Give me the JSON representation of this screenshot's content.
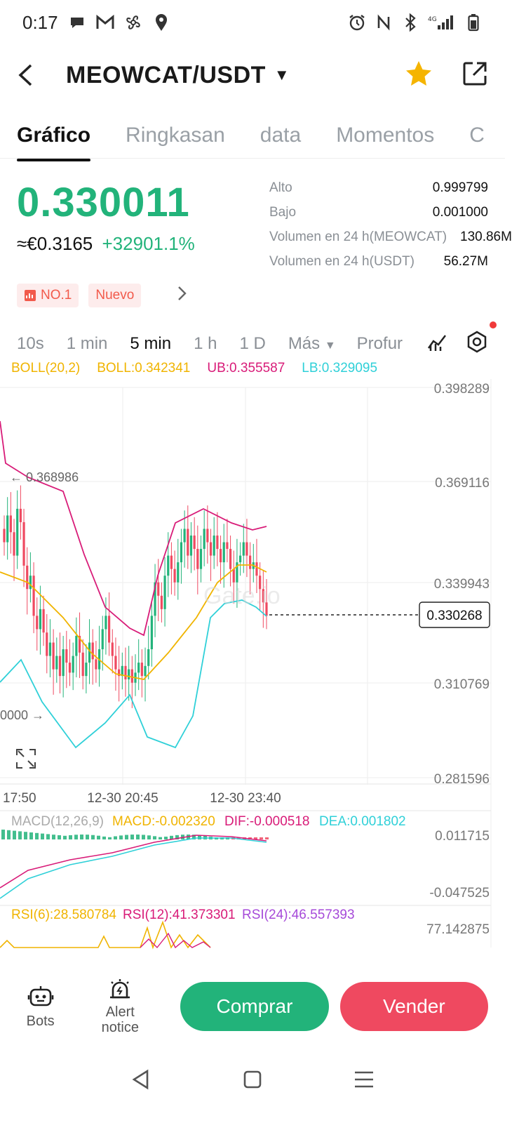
{
  "status_bar": {
    "time": "0:17",
    "network": "4G"
  },
  "header": {
    "pair": "MEOWCAT/USDT"
  },
  "tabs": [
    {
      "label": "Gráfico",
      "active": true
    },
    {
      "label": "Ringkasan"
    },
    {
      "label": "data"
    },
    {
      "label": "Momentos"
    },
    {
      "label": "C"
    }
  ],
  "ticker": {
    "last_price": "0.330011",
    "fiat_price": "≈€0.3165",
    "change": "+32901.1%",
    "stats": [
      {
        "label": "Alto",
        "value": "0.999799"
      },
      {
        "label": "Bajo",
        "value": "0.001000"
      },
      {
        "label": "Volumen en 24 h(MEOWCAT)",
        "value": "130.86M"
      },
      {
        "label": "Volumen en 24 h(USDT)",
        "value": "56.27M"
      }
    ]
  },
  "badges": {
    "rank": "NO.1",
    "new": "Nuevo"
  },
  "intervals": {
    "items": [
      "10s",
      "1 min",
      "5 min",
      "1 h",
      "1 D"
    ],
    "active": "5 min",
    "more": "Más",
    "depth": "Profur"
  },
  "indicators": {
    "boll": {
      "name": "BOLL(20,2)",
      "boll": "BOLL:0.342341",
      "ub": "UB:0.355587",
      "lb": "LB:0.329095"
    },
    "macd": {
      "name": "MACD(12,26,9)",
      "macd": "MACD:-0.002320",
      "dif": "DIF:-0.000518",
      "dea": "DEA:0.001802"
    },
    "rsi": {
      "rsi6": "RSI(6):28.580784",
      "rsi12": "RSI(12):41.373301",
      "rsi24": "RSI(24):46.557393"
    }
  },
  "chart_data": {
    "type": "candlestick",
    "y_ticks": [
      "0.398289",
      "0.369116",
      "0.339943",
      "0.310769",
      "0.281596"
    ],
    "ylim": [
      0.281596,
      0.398289
    ],
    "x_ticks": [
      "17:50",
      "12-30 20:45",
      "12-30 23:40"
    ],
    "current_price": "0.330268",
    "high_marker": "← 0.368986",
    "low_marker": "0000 →",
    "macd_ticks": [
      "0.011715",
      "-0.047525"
    ],
    "rsi_ticks": [
      "77.142875"
    ],
    "colors": {
      "up": "#22b37a",
      "down": "#ef4960",
      "ub": "#d81b78",
      "boll": "#f0b400",
      "lb": "#2fd0d8"
    }
  },
  "bottom": {
    "bots": "Bots",
    "alert": "Alert notice",
    "buy": "Comprar",
    "sell": "Vender"
  }
}
